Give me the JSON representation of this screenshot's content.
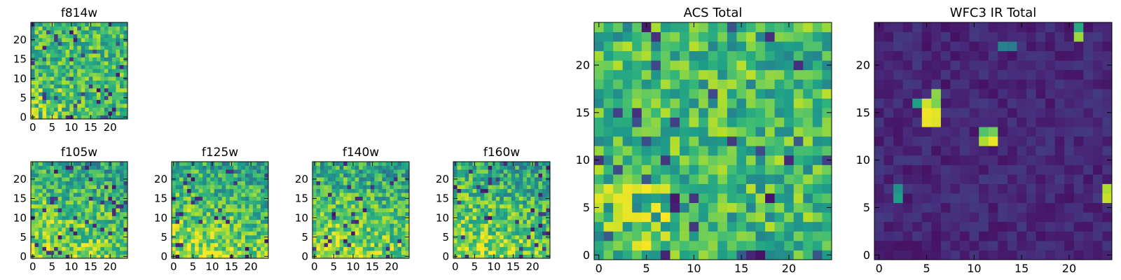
{
  "chart_data": [
    {
      "id": "f814w",
      "type": "heatmap",
      "title": "f814w",
      "grid_size": 25,
      "xticks": [
        "0",
        "5",
        "10",
        "15",
        "20"
      ],
      "yticks": [
        "0",
        "5",
        "10",
        "15",
        "20"
      ],
      "value_range": [
        0,
        1
      ],
      "colormap": "viridis",
      "pattern": "acs",
      "seed": 11
    },
    {
      "id": "f105w",
      "type": "heatmap",
      "title": "f105w",
      "grid_size": 25,
      "xticks": [
        "0",
        "5",
        "10",
        "15",
        "20"
      ],
      "yticks": [
        "0",
        "5",
        "10",
        "15",
        "20"
      ],
      "value_range": [
        0,
        1
      ],
      "colormap": "viridis",
      "pattern": "ir-band",
      "seed": 23
    },
    {
      "id": "f125w",
      "type": "heatmap",
      "title": "f125w",
      "grid_size": 25,
      "xticks": [
        "0",
        "5",
        "10",
        "15",
        "20"
      ],
      "yticks": [
        "0",
        "5",
        "10",
        "15",
        "20"
      ],
      "value_range": [
        0,
        1
      ],
      "colormap": "viridis",
      "pattern": "ir-band",
      "seed": 37
    },
    {
      "id": "f140w",
      "type": "heatmap",
      "title": "f140w",
      "grid_size": 25,
      "xticks": [
        "0",
        "5",
        "10",
        "15",
        "20"
      ],
      "yticks": [
        "0",
        "5",
        "10",
        "15",
        "20"
      ],
      "value_range": [
        0,
        1
      ],
      "colormap": "viridis",
      "pattern": "ir-band",
      "seed": 51
    },
    {
      "id": "f160w",
      "type": "heatmap",
      "title": "f160w",
      "grid_size": 25,
      "xticks": [
        "0",
        "5",
        "10",
        "15",
        "20"
      ],
      "yticks": [
        "0",
        "5",
        "10",
        "15",
        "20"
      ],
      "value_range": [
        0,
        1
      ],
      "colormap": "viridis",
      "pattern": "ir-band",
      "seed": 67
    },
    {
      "id": "acs",
      "type": "heatmap",
      "title": "ACS Total",
      "grid_size": 25,
      "xticks": [
        "0",
        "5",
        "10",
        "15",
        "20"
      ],
      "yticks": [
        "0",
        "5",
        "10",
        "15",
        "20"
      ],
      "value_range": [
        0,
        1
      ],
      "colormap": "viridis",
      "pattern": "acs",
      "seed": 83
    },
    {
      "id": "wfc3",
      "type": "heatmap",
      "title": "WFC3 IR Total",
      "grid_size": 25,
      "xticks": [
        "0",
        "5",
        "10",
        "15",
        "20"
      ],
      "yticks": [
        "0",
        "5",
        "10",
        "15",
        "20"
      ],
      "value_range": [
        0,
        1
      ],
      "colormap": "viridis",
      "pattern": "ir-total",
      "seed": 97,
      "hotspots": [
        {
          "x": 5,
          "y": 14,
          "value": 0.97
        },
        {
          "x": 6,
          "y": 14,
          "value": 0.95
        },
        {
          "x": 5,
          "y": 15,
          "value": 0.98
        },
        {
          "x": 6,
          "y": 15,
          "value": 0.96
        },
        {
          "x": 5,
          "y": 16,
          "value": 0.93
        },
        {
          "x": 6,
          "y": 16,
          "value": 0.8
        },
        {
          "x": 6,
          "y": 17,
          "value": 0.82
        },
        {
          "x": 4,
          "y": 16,
          "value": 0.55
        },
        {
          "x": 11,
          "y": 12,
          "value": 0.88
        },
        {
          "x": 12,
          "y": 12,
          "value": 0.97
        },
        {
          "x": 11,
          "y": 13,
          "value": 0.72
        },
        {
          "x": 12,
          "y": 13,
          "value": 0.78
        },
        {
          "x": 24,
          "y": 6,
          "value": 0.92
        },
        {
          "x": 24,
          "y": 7,
          "value": 0.88
        },
        {
          "x": 2,
          "y": 6,
          "value": 0.55
        },
        {
          "x": 2,
          "y": 7,
          "value": 0.5
        },
        {
          "x": 21,
          "y": 23,
          "value": 0.85
        },
        {
          "x": 21,
          "y": 24,
          "value": 0.6
        },
        {
          "x": 13,
          "y": 22,
          "value": 0.45
        },
        {
          "x": 14,
          "y": 22,
          "value": 0.42
        }
      ]
    }
  ]
}
